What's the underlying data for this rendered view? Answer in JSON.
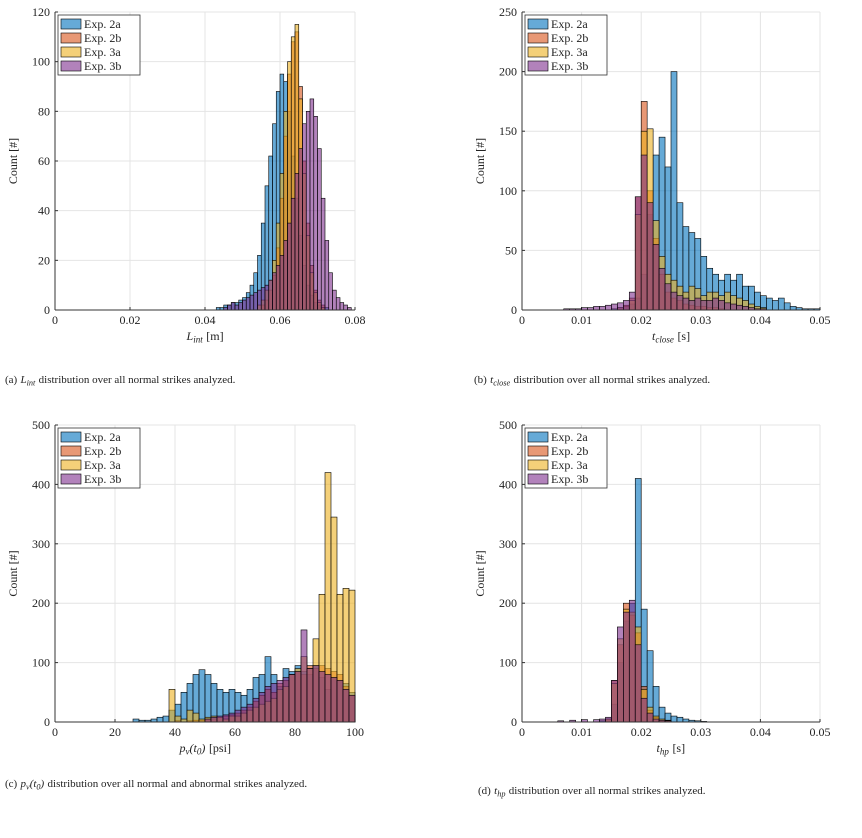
{
  "chart_data": [
    {
      "type": "histogram",
      "ylabel": "Count [#]",
      "xlabel": [
        {
          "math": "L"
        },
        {
          "sub": "int"
        },
        {
          "text": "[m]"
        }
      ],
      "caption": [
        {
          "text": "(a)"
        },
        {
          "math": "L"
        },
        {
          "sub": "int"
        },
        {
          "text": "distribution over all normal strikes analyzed."
        }
      ],
      "xlim": [
        0,
        0.08
      ],
      "xticks": [
        0,
        0.02,
        0.04,
        0.06,
        0.08
      ],
      "ylim": [
        0,
        120
      ],
      "yticks": [
        0,
        20,
        40,
        60,
        80,
        100,
        120
      ],
      "grid": true,
      "legend": "upper left",
      "alpha": 0.6,
      "bins": [
        0.04,
        0.041,
        0.042,
        0.043,
        0.044,
        0.045,
        0.046,
        0.047,
        0.048,
        0.049,
        0.05,
        0.051,
        0.052,
        0.053,
        0.054,
        0.055,
        0.056,
        0.057,
        0.058,
        0.059,
        0.06,
        0.061,
        0.062,
        0.063,
        0.064,
        0.065,
        0.066,
        0.067,
        0.068,
        0.069,
        0.07,
        0.071,
        0.072,
        0.073,
        0.074,
        0.075,
        0.076,
        0.077,
        0.078,
        0.079,
        0.08
      ],
      "series": [
        {
          "name": "Exp. 2a",
          "color": "#0072BD",
          "values": [
            0,
            0,
            0,
            1,
            1,
            2,
            2,
            3,
            3,
            4,
            5,
            7,
            10,
            15,
            22,
            35,
            50,
            62,
            75,
            88,
            95,
            92,
            80,
            62,
            45,
            30,
            18,
            10,
            6,
            3,
            2,
            1,
            1,
            0,
            0,
            0,
            0,
            0,
            0,
            0
          ]
        },
        {
          "name": "Exp. 2b",
          "color": "#D95319",
          "values": [
            0,
            0,
            0,
            0,
            0,
            0,
            0,
            0,
            0,
            0,
            0,
            0,
            0,
            0,
            0,
            2,
            4,
            8,
            14,
            25,
            45,
            70,
            95,
            108,
            112,
            90,
            60,
            35,
            18,
            8,
            4,
            2,
            0,
            0,
            0,
            0,
            0,
            0,
            0,
            0
          ]
        },
        {
          "name": "Exp. 3a",
          "color": "#EDB120",
          "values": [
            0,
            0,
            0,
            0,
            0,
            0,
            0,
            0,
            0,
            0,
            0,
            0,
            0,
            0,
            2,
            4,
            8,
            12,
            20,
            35,
            55,
            80,
            100,
            110,
            115,
            85,
            55,
            30,
            15,
            7,
            3,
            1,
            0,
            0,
            0,
            0,
            0,
            0,
            0,
            0
          ]
        },
        {
          "name": "Exp. 3b",
          "color": "#7E2F8E",
          "values": [
            0,
            0,
            0,
            0,
            0,
            1,
            2,
            3,
            2,
            3,
            4,
            5,
            6,
            7,
            8,
            9,
            10,
            12,
            15,
            18,
            22,
            28,
            35,
            45,
            55,
            65,
            75,
            80,
            85,
            78,
            65,
            45,
            28,
            15,
            8,
            5,
            3,
            2,
            1,
            0
          ]
        }
      ]
    },
    {
      "type": "histogram",
      "ylabel": "Count [#]",
      "xlabel": [
        {
          "math": "t"
        },
        {
          "sub": "close"
        },
        {
          "text": "[s]"
        }
      ],
      "caption": [
        {
          "text": "(b)"
        },
        {
          "math": "t"
        },
        {
          "sub": "close"
        },
        {
          "text": "distribution over all normal strikes analyzed."
        }
      ],
      "xlim": [
        0,
        0.05
      ],
      "xticks": [
        0,
        0.01,
        0.02,
        0.03,
        0.04,
        0.05
      ],
      "ylim": [
        0,
        250
      ],
      "yticks": [
        0,
        50,
        100,
        150,
        200,
        250
      ],
      "grid": true,
      "legend": "upper left",
      "alpha": 0.6,
      "bins": [
        0.005,
        0.006,
        0.007,
        0.008,
        0.009,
        0.01,
        0.011,
        0.012,
        0.013,
        0.014,
        0.015,
        0.016,
        0.017,
        0.018,
        0.019,
        0.02,
        0.021,
        0.022,
        0.023,
        0.024,
        0.025,
        0.026,
        0.027,
        0.028,
        0.029,
        0.03,
        0.031,
        0.032,
        0.033,
        0.034,
        0.035,
        0.036,
        0.037,
        0.038,
        0.039,
        0.04,
        0.041,
        0.042,
        0.043,
        0.044,
        0.045,
        0.046,
        0.047,
        0.048,
        0.049,
        0.05
      ],
      "series": [
        {
          "name": "Exp. 2a",
          "color": "#0072BD",
          "values": [
            0,
            0,
            0,
            0,
            0,
            0,
            0,
            0,
            0,
            0,
            1,
            2,
            3,
            5,
            10,
            30,
            80,
            130,
            145,
            120,
            200,
            90,
            70,
            65,
            60,
            45,
            35,
            30,
            25,
            30,
            25,
            30,
            20,
            20,
            15,
            12,
            10,
            8,
            10,
            6,
            3,
            2,
            1,
            1,
            1
          ]
        },
        {
          "name": "Exp. 2b",
          "color": "#D95319",
          "values": [
            0,
            0,
            0,
            0,
            0,
            0,
            0,
            0,
            0,
            0,
            0,
            2,
            4,
            10,
            95,
            175,
            100,
            60,
            30,
            15,
            10,
            8,
            5,
            4,
            3,
            3,
            2,
            2,
            1,
            0,
            0,
            0,
            0,
            0,
            0,
            0,
            0,
            0,
            0,
            0,
            0,
            0,
            0,
            0,
            0
          ]
        },
        {
          "name": "Exp. 3a",
          "color": "#EDB120",
          "values": [
            0,
            0,
            0,
            0,
            0,
            0,
            0,
            0,
            0,
            0,
            0,
            0,
            0,
            8,
            80,
            150,
            152,
            75,
            45,
            30,
            25,
            20,
            15,
            20,
            18,
            12,
            15,
            15,
            12,
            15,
            12,
            10,
            8,
            5,
            3,
            2,
            0,
            0,
            0,
            0,
            0,
            0,
            0,
            0,
            0
          ]
        },
        {
          "name": "Exp. 3b",
          "color": "#7E2F8E",
          "values": [
            0,
            0,
            1,
            1,
            1,
            2,
            2,
            3,
            3,
            4,
            5,
            6,
            8,
            15,
            95,
            130,
            90,
            55,
            35,
            22,
            15,
            12,
            10,
            8,
            10,
            8,
            8,
            10,
            8,
            6,
            5,
            4,
            3,
            2,
            1,
            1,
            0,
            0,
            0,
            0,
            0,
            0,
            0,
            0,
            0
          ]
        }
      ]
    },
    {
      "type": "histogram",
      "ylabel": "Count [#]",
      "xlabel": [
        {
          "math": "p"
        },
        {
          "sub": "v"
        },
        {
          "math": "(t"
        },
        {
          "sub": "0"
        },
        {
          "math": ")"
        },
        {
          "text": "[psi]"
        }
      ],
      "caption": [
        {
          "text": "(c)"
        },
        {
          "math": "p"
        },
        {
          "sub": "v"
        },
        {
          "math": "(t"
        },
        {
          "sub": "0"
        },
        {
          "math": ")"
        },
        {
          "text": "distribution over all normal and abnormal strikes analyzed."
        }
      ],
      "xlim": [
        0,
        100
      ],
      "xticks": [
        0,
        20,
        40,
        60,
        80,
        100
      ],
      "ylim": [
        0,
        500
      ],
      "yticks": [
        0,
        100,
        200,
        300,
        400,
        500
      ],
      "grid": true,
      "legend": "upper left",
      "alpha": 0.6,
      "bins": [
        20,
        22,
        24,
        26,
        28,
        30,
        32,
        34,
        36,
        38,
        40,
        42,
        44,
        46,
        48,
        50,
        52,
        54,
        56,
        58,
        60,
        62,
        64,
        66,
        68,
        70,
        72,
        74,
        76,
        78,
        80,
        82,
        84,
        86,
        88,
        90,
        92,
        94,
        96,
        98,
        100
      ],
      "series": [
        {
          "name": "Exp. 2a",
          "color": "#0072BD",
          "values": [
            0,
            0,
            0,
            5,
            3,
            3,
            5,
            8,
            10,
            20,
            30,
            50,
            65,
            80,
            88,
            80,
            65,
            55,
            50,
            55,
            50,
            45,
            55,
            75,
            80,
            110,
            80,
            60,
            90,
            85,
            95,
            85,
            80,
            95,
            75,
            55,
            75,
            70,
            65,
            50
          ]
        },
        {
          "name": "Exp. 2b",
          "color": "#D95319",
          "values": [
            0,
            0,
            0,
            0,
            0,
            0,
            0,
            0,
            0,
            0,
            2,
            0,
            2,
            3,
            3,
            5,
            5,
            8,
            10,
            12,
            15,
            20,
            25,
            35,
            45,
            55,
            50,
            65,
            70,
            80,
            85,
            80,
            95,
            90,
            95,
            90,
            85,
            80,
            60,
            45
          ]
        },
        {
          "name": "Exp. 3a",
          "color": "#EDB120",
          "values": [
            0,
            0,
            0,
            0,
            0,
            0,
            0,
            0,
            0,
            55,
            10,
            5,
            20,
            15,
            5,
            8,
            10,
            8,
            5,
            10,
            10,
            15,
            20,
            25,
            30,
            35,
            40,
            55,
            60,
            80,
            90,
            110,
            90,
            140,
            215,
            420,
            345,
            215,
            225,
            222
          ]
        },
        {
          "name": "Exp. 3b",
          "color": "#7E2F8E",
          "values": [
            0,
            0,
            0,
            0,
            0,
            0,
            0,
            0,
            0,
            0,
            0,
            0,
            0,
            0,
            0,
            5,
            8,
            10,
            12,
            15,
            20,
            25,
            30,
            40,
            50,
            60,
            65,
            70,
            75,
            80,
            85,
            155,
            90,
            95,
            85,
            80,
            75,
            70,
            55,
            45
          ]
        }
      ]
    },
    {
      "type": "histogram",
      "ylabel": "Count [#]",
      "xlabel": [
        {
          "math": "t"
        },
        {
          "sub": "hp"
        },
        {
          "text": "[s]"
        }
      ],
      "caption": [
        {
          "text": "(d)"
        },
        {
          "math": "t"
        },
        {
          "sub": "hp"
        },
        {
          "text": "distribution over all normal strikes analyzed."
        }
      ],
      "xlim": [
        0,
        0.05
      ],
      "xticks": [
        0,
        0.01,
        0.02,
        0.03,
        0.04,
        0.05
      ],
      "ylim": [
        0,
        500
      ],
      "yticks": [
        0,
        100,
        200,
        300,
        400,
        500
      ],
      "grid": true,
      "legend": "upper left",
      "alpha": 0.6,
      "bins": [
        0.005,
        0.006,
        0.007,
        0.008,
        0.009,
        0.01,
        0.011,
        0.012,
        0.013,
        0.014,
        0.015,
        0.016,
        0.017,
        0.018,
        0.019,
        0.02,
        0.021,
        0.022,
        0.023,
        0.024,
        0.025,
        0.026,
        0.027,
        0.028,
        0.029,
        0.03,
        0.031,
        0.032,
        0.033,
        0.034,
        0.035
      ],
      "series": [
        {
          "name": "Exp. 2a",
          "color": "#0072BD",
          "values": [
            0,
            0,
            0,
            0,
            0,
            0,
            0,
            0,
            2,
            5,
            30,
            100,
            170,
            200,
            410,
            190,
            120,
            60,
            25,
            15,
            10,
            8,
            5,
            3,
            2,
            1,
            0,
            0,
            0,
            0
          ]
        },
        {
          "name": "Exp. 2b",
          "color": "#D95319",
          "values": [
            0,
            0,
            0,
            0,
            0,
            0,
            0,
            0,
            0,
            5,
            70,
            130,
            200,
            180,
            150,
            60,
            20,
            8,
            3,
            2,
            0,
            0,
            0,
            0,
            0,
            0,
            0,
            0,
            0,
            0
          ]
        },
        {
          "name": "Exp. 3a",
          "color": "#EDB120",
          "values": [
            0,
            0,
            0,
            0,
            0,
            0,
            0,
            0,
            0,
            5,
            65,
            140,
            190,
            185,
            160,
            55,
            25,
            10,
            5,
            3,
            0,
            0,
            0,
            0,
            0,
            0,
            0,
            0,
            0,
            0
          ]
        },
        {
          "name": "Exp. 3b",
          "color": "#7E2F8E",
          "values": [
            0,
            2,
            0,
            3,
            0,
            4,
            0,
            4,
            5,
            8,
            70,
            160,
            185,
            205,
            130,
            40,
            15,
            5,
            3,
            2,
            0,
            0,
            0,
            0,
            0,
            0,
            0,
            0,
            0,
            0
          ]
        }
      ]
    }
  ]
}
